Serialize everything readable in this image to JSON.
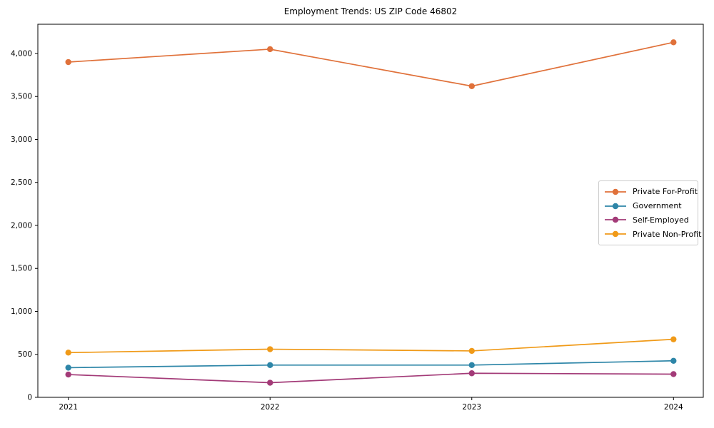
{
  "chart_data": {
    "type": "line",
    "title": "Employment Trends: US ZIP Code 46802",
    "categories": [
      "2021",
      "2022",
      "2023",
      "2024"
    ],
    "series": [
      {
        "name": "Private For-Profit",
        "color": "#E0713A",
        "values": [
          3900,
          4050,
          3620,
          4130
        ]
      },
      {
        "name": "Government",
        "color": "#2E86A8",
        "values": [
          345,
          375,
          375,
          425
        ]
      },
      {
        "name": "Self-Employed",
        "color": "#A33B78",
        "values": [
          265,
          170,
          280,
          270
        ]
      },
      {
        "name": "Private Non-Profit",
        "color": "#F09A18",
        "values": [
          520,
          560,
          540,
          675
        ]
      }
    ],
    "xlabel": "",
    "ylabel": "",
    "ylim": [
      0,
      4340
    ],
    "yticks": [
      0,
      500,
      1000,
      1500,
      2000,
      2500,
      3000,
      3500,
      4000
    ],
    "ytick_labels": [
      "0",
      "500",
      "1,000",
      "1,500",
      "2,000",
      "2,500",
      "3,000",
      "3,500",
      "4,000"
    ],
    "grid": false,
    "legend_position": "center right",
    "axis_color": "#000000"
  }
}
